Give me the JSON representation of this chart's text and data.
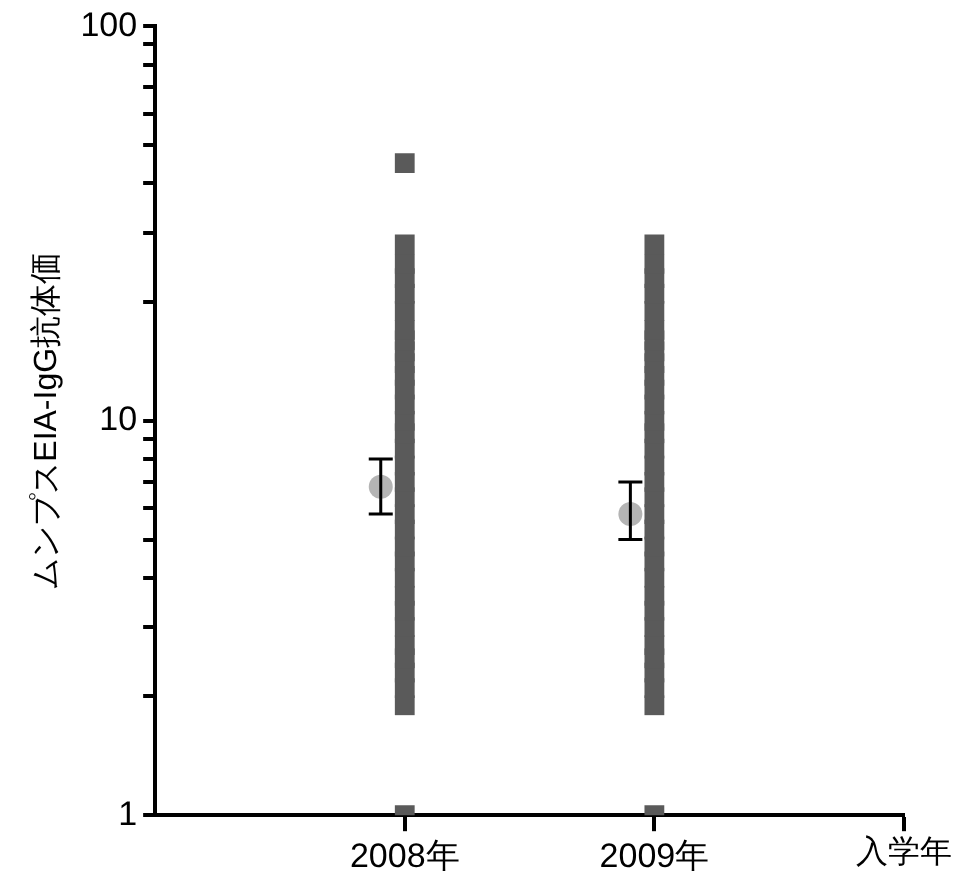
{
  "chart_data": {
    "type": "scatter",
    "ylabel": "ムンプスEIA-IgG抗体価",
    "xlabel": "入学年",
    "categories": [
      "2008年",
      "2009年"
    ],
    "log": "y",
    "ylim": [
      1,
      100
    ],
    "yticks": [
      1,
      {
        "value": 2,
        "label": null
      },
      {
        "value": 3,
        "label": null
      },
      {
        "value": 4,
        "label": null
      },
      {
        "value": 5,
        "label": null
      },
      {
        "value": 6,
        "label": null
      },
      {
        "value": 7,
        "label": null
      },
      {
        "value": 8,
        "label": null
      },
      {
        "value": 9,
        "label": null
      },
      10,
      {
        "value": 20,
        "label": null
      },
      {
        "value": 30,
        "label": null
      },
      {
        "value": 40,
        "label": null
      },
      {
        "value": 50,
        "label": null
      },
      {
        "value": 60,
        "label": null
      },
      {
        "value": 70,
        "label": null
      },
      {
        "value": 80,
        "label": null
      },
      {
        "value": 90,
        "label": null
      },
      100
    ],
    "grid": false,
    "legend": false,
    "series": [
      {
        "marker": "square",
        "color": "#5a5a5a",
        "x": [
          "2008年",
          "2008年",
          "2008年",
          "2008年",
          "2008年",
          "2008年",
          "2008年",
          "2008年",
          "2008年",
          "2008年",
          "2008年",
          "2008年",
          "2008年",
          "2008年",
          "2008年",
          "2008年",
          "2008年",
          "2008年",
          "2008年",
          "2008年",
          "2008年",
          "2008年",
          "2008年",
          "2008年",
          "2008年",
          "2008年",
          "2008年",
          "2008年",
          "2008年",
          "2008年",
          "2008年",
          "2008年",
          "2008年"
        ],
        "values": [
          1,
          1.9,
          2.1,
          2.3,
          2.5,
          2.7,
          3,
          3.3,
          3.6,
          4,
          4.4,
          4.8,
          5.3,
          5.8,
          6.4,
          7,
          7.7,
          8.5,
          9.3,
          10,
          11,
          12,
          13,
          14,
          15,
          16,
          17,
          19,
          21,
          23,
          25,
          28,
          45
        ]
      },
      {
        "marker": "square",
        "color": "#5a5a5a",
        "x": [
          "2009年",
          "2009年",
          "2009年",
          "2009年",
          "2009年",
          "2009年",
          "2009年",
          "2009年",
          "2009年",
          "2009年",
          "2009年",
          "2009年",
          "2009年",
          "2009年",
          "2009年",
          "2009年",
          "2009年",
          "2009年",
          "2009年",
          "2009年",
          "2009年",
          "2009年",
          "2009年",
          "2009年",
          "2009年",
          "2009年",
          "2009年",
          "2009年",
          "2009年",
          "2009年",
          "2009年",
          "2009年"
        ],
        "values": [
          1,
          1.9,
          2.1,
          2.3,
          2.5,
          2.7,
          3,
          3.3,
          3.6,
          4,
          4.4,
          4.8,
          5.3,
          5.8,
          6.4,
          7,
          7.7,
          8.5,
          9.3,
          10,
          11,
          12,
          13,
          14,
          15,
          16,
          17,
          19,
          21,
          23,
          25,
          28
        ]
      },
      {
        "marker": "circle",
        "color": "#b4b4b4",
        "x": [
          "2008年",
          "2009年"
        ],
        "values": [
          6.8,
          5.8
        ],
        "errors": [
          [
            5.8,
            8.0
          ],
          [
            5.0,
            7.0
          ]
        ]
      }
    ]
  }
}
